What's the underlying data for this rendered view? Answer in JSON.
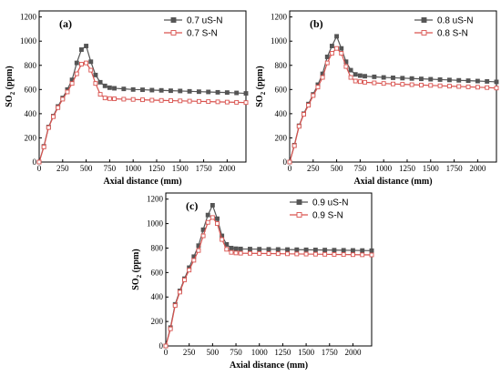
{
  "chart_data": [
    {
      "type": "line",
      "panel_label": "(a)",
      "xlabel": "Axial distance (mm)",
      "ylabel": "SO2 (ppm)",
      "xlim": [
        0,
        2200
      ],
      "ylim": [
        0,
        1250
      ],
      "xticks": [
        0,
        250,
        500,
        750,
        1000,
        1250,
        1500,
        1750,
        2000
      ],
      "yticks": [
        0,
        200,
        400,
        600,
        800,
        1000,
        1200
      ],
      "legend": "top-right",
      "series": [
        {
          "name": "0.7 uS-N",
          "color": "#555555",
          "marker": "filled-square",
          "x": [
            0,
            50,
            100,
            150,
            200,
            250,
            300,
            350,
            400,
            450,
            500,
            550,
            600,
            650,
            700,
            750,
            800,
            900,
            1000,
            1100,
            1200,
            1300,
            1400,
            1500,
            1600,
            1700,
            1800,
            1900,
            2000,
            2100,
            2200
          ],
          "values": [
            0,
            130,
            290,
            380,
            460,
            530,
            600,
            680,
            820,
            930,
            960,
            830,
            720,
            660,
            630,
            615,
            610,
            605,
            600,
            598,
            595,
            593,
            590,
            588,
            585,
            582,
            580,
            577,
            575,
            572,
            568
          ]
        },
        {
          "name": "0.7 S-N",
          "color": "#d9534f",
          "marker": "open-square",
          "x": [
            0,
            50,
            100,
            150,
            200,
            250,
            300,
            350,
            400,
            450,
            500,
            550,
            600,
            650,
            700,
            750,
            800,
            900,
            1000,
            1100,
            1200,
            1300,
            1400,
            1500,
            1600,
            1700,
            1800,
            1900,
            2000,
            2100,
            2200
          ],
          "values": [
            0,
            125,
            285,
            375,
            450,
            520,
            580,
            650,
            730,
            810,
            820,
            760,
            650,
            560,
            530,
            525,
            523,
            520,
            518,
            515,
            512,
            510,
            508,
            506,
            504,
            502,
            500,
            498,
            496,
            494,
            492
          ]
        }
      ]
    },
    {
      "type": "line",
      "panel_label": "(b)",
      "xlabel": "Axial distance (mm)",
      "ylabel": "SO2 (ppm)",
      "xlim": [
        0,
        2200
      ],
      "ylim": [
        0,
        1250
      ],
      "xticks": [
        0,
        250,
        500,
        750,
        1000,
        1250,
        1500,
        1750,
        2000
      ],
      "yticks": [
        0,
        200,
        400,
        600,
        800,
        1000,
        1200
      ],
      "legend": "top-right",
      "series": [
        {
          "name": "0.8 uS-N",
          "color": "#555555",
          "marker": "filled-square",
          "x": [
            0,
            50,
            100,
            150,
            200,
            250,
            300,
            350,
            400,
            450,
            500,
            550,
            600,
            650,
            700,
            750,
            800,
            900,
            1000,
            1100,
            1200,
            1300,
            1400,
            1500,
            1600,
            1700,
            1800,
            1900,
            2000,
            2100,
            2200
          ],
          "values": [
            0,
            140,
            300,
            400,
            480,
            560,
            640,
            730,
            870,
            960,
            1040,
            940,
            830,
            760,
            725,
            715,
            710,
            705,
            700,
            697,
            694,
            691,
            688,
            685,
            682,
            679,
            676,
            673,
            670,
            667,
            663
          ]
        },
        {
          "name": "0.8 S-N",
          "color": "#d9534f",
          "marker": "open-square",
          "x": [
            0,
            50,
            100,
            150,
            200,
            250,
            300,
            350,
            400,
            450,
            500,
            550,
            600,
            650,
            700,
            750,
            800,
            900,
            1000,
            1100,
            1200,
            1300,
            1400,
            1500,
            1600,
            1700,
            1800,
            1900,
            2000,
            2100,
            2200
          ],
          "values": [
            0,
            135,
            295,
            395,
            470,
            550,
            620,
            700,
            820,
            900,
            940,
            900,
            790,
            700,
            670,
            665,
            660,
            655,
            650,
            646,
            643,
            640,
            637,
            634,
            631,
            628,
            625,
            622,
            619,
            616,
            612
          ]
        }
      ]
    },
    {
      "type": "line",
      "panel_label": "(c)",
      "xlabel": "Axial distance (mm)",
      "ylabel": "SO2 (ppm)",
      "xlim": [
        0,
        2200
      ],
      "ylim": [
        0,
        1250
      ],
      "xticks": [
        0,
        250,
        500,
        750,
        1000,
        1250,
        1500,
        1750,
        2000
      ],
      "yticks": [
        0,
        200,
        400,
        600,
        800,
        1000,
        1200
      ],
      "legend": "top-right",
      "series": [
        {
          "name": "0.9 uS-N",
          "color": "#555555",
          "marker": "filled-square",
          "x": [
            0,
            50,
            100,
            150,
            200,
            250,
            300,
            350,
            400,
            450,
            500,
            550,
            600,
            650,
            700,
            750,
            800,
            900,
            1000,
            1100,
            1200,
            1300,
            1400,
            1500,
            1600,
            1700,
            1800,
            1900,
            2000,
            2100,
            2200
          ],
          "values": [
            0,
            150,
            340,
            450,
            550,
            640,
            730,
            820,
            950,
            1070,
            1150,
            1040,
            900,
            830,
            800,
            795,
            793,
            792,
            791,
            790,
            789,
            788,
            787,
            786,
            785,
            784,
            783,
            782,
            781,
            780,
            779
          ]
        },
        {
          "name": "0.9 S-N",
          "color": "#d9534f",
          "marker": "open-square",
          "x": [
            0,
            50,
            100,
            150,
            200,
            250,
            300,
            350,
            400,
            450,
            500,
            550,
            600,
            650,
            700,
            750,
            800,
            900,
            1000,
            1100,
            1200,
            1300,
            1400,
            1500,
            1600,
            1700,
            1800,
            1900,
            2000,
            2100,
            2200
          ],
          "values": [
            0,
            140,
            330,
            440,
            540,
            620,
            700,
            780,
            900,
            1010,
            1050,
            1000,
            870,
            790,
            765,
            760,
            758,
            757,
            756,
            755,
            754,
            753,
            752,
            751,
            750,
            749,
            748,
            747,
            746,
            745,
            744
          ]
        }
      ]
    }
  ]
}
